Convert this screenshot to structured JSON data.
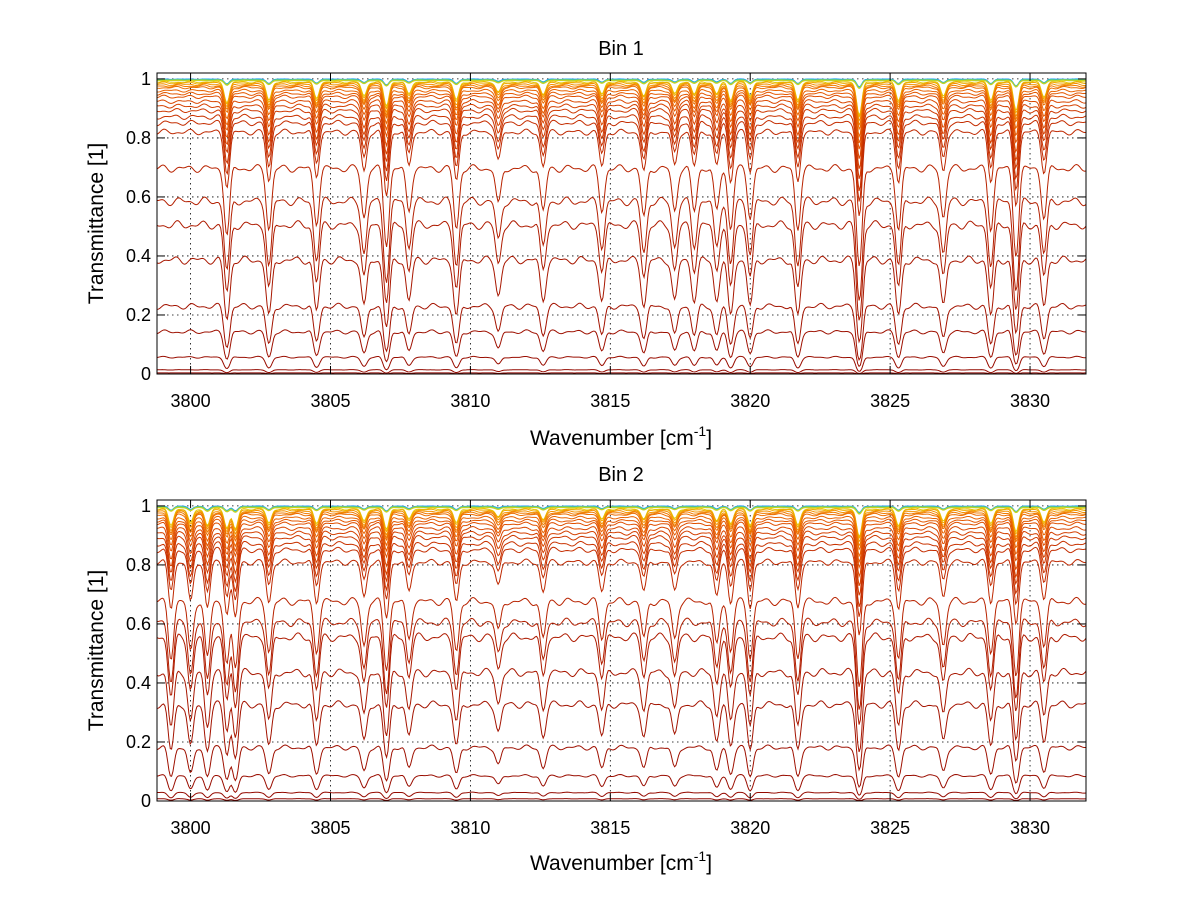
{
  "chart_data": [
    {
      "type": "line",
      "title": "Bin 1",
      "xlabel": "Wavenumber [cm",
      "xlabel_sup": "-1",
      "xlabel_end": "]",
      "ylabel": "Transmittance [1]",
      "xlim": [
        3798.8,
        3832
      ],
      "ylim": [
        0,
        1.02
      ],
      "xticks": [
        3800,
        3805,
        3810,
        3815,
        3820,
        3825,
        3830
      ],
      "yticks": [
        0,
        0.2,
        0.4,
        0.6,
        0.8,
        1
      ],
      "xticklabels": [
        "3800",
        "3805",
        "3810",
        "3815",
        "3820",
        "3825",
        "3830"
      ],
      "yticklabels": [
        "0",
        "0.2",
        "0.4",
        "0.6",
        "0.8",
        "1"
      ],
      "grid": true,
      "series_baselines": [
        1.0,
        0.999,
        0.998,
        0.997,
        0.995,
        0.993,
        0.99,
        0.985,
        0.98,
        0.975,
        0.965,
        0.955,
        0.945,
        0.93,
        0.915,
        0.9,
        0.88,
        0.86,
        0.83,
        0.71,
        0.6,
        0.52,
        0.4,
        0.24,
        0.15,
        0.06,
        0.015,
        0.004
      ],
      "series_colors": [
        "#1e90ff",
        "#23b5d8",
        "#3fc9a0",
        "#8cd05a",
        "#c9d21f",
        "#e6c500",
        "#f0a800",
        "#f39000",
        "#f07c00",
        "#ec6d00",
        "#e86200",
        "#e45800",
        "#df4f00",
        "#da4700",
        "#d44000",
        "#ce3900",
        "#c93300",
        "#c42d00",
        "#be2800",
        "#b82300",
        "#b31f00",
        "#ae1b00",
        "#a81700",
        "#a31300",
        "#9e1000",
        "#990d00",
        "#940a00",
        "#8f0700"
      ],
      "absorption_lines": [
        {
          "x": 3801.3,
          "depth": 0.5
        },
        {
          "x": 3802.8,
          "depth": 0.45
        },
        {
          "x": 3804.5,
          "depth": 0.4
        },
        {
          "x": 3806.2,
          "depth": 0.35
        },
        {
          "x": 3807.0,
          "depth": 0.6
        },
        {
          "x": 3807.8,
          "depth": 0.3
        },
        {
          "x": 3809.5,
          "depth": 0.45
        },
        {
          "x": 3811.0,
          "depth": 0.25
        },
        {
          "x": 3812.6,
          "depth": 0.3
        },
        {
          "x": 3814.7,
          "depth": 0.3
        },
        {
          "x": 3816.2,
          "depth": 0.35
        },
        {
          "x": 3817.3,
          "depth": 0.3
        },
        {
          "x": 3818.0,
          "depth": 0.3
        },
        {
          "x": 3818.8,
          "depth": 0.3
        },
        {
          "x": 3819.3,
          "depth": 0.45
        },
        {
          "x": 3820.0,
          "depth": 0.35
        },
        {
          "x": 3821.7,
          "depth": 0.45
        },
        {
          "x": 3823.9,
          "depth": 0.85
        },
        {
          "x": 3825.3,
          "depth": 0.45
        },
        {
          "x": 3826.9,
          "depth": 0.35
        },
        {
          "x": 3828.6,
          "depth": 0.45
        },
        {
          "x": 3829.5,
          "depth": 0.7
        },
        {
          "x": 3830.5,
          "depth": 0.35
        }
      ]
    },
    {
      "type": "line",
      "title": "Bin 2",
      "xlabel": "Wavenumber [cm",
      "xlabel_sup": "-1",
      "xlabel_end": "]",
      "ylabel": "Transmittance [1]",
      "xlim": [
        3798.8,
        3832
      ],
      "ylim": [
        0,
        1.02
      ],
      "xticks": [
        3800,
        3805,
        3810,
        3815,
        3820,
        3825,
        3830
      ],
      "yticks": [
        0,
        0.2,
        0.4,
        0.6,
        0.8,
        1
      ],
      "xticklabels": [
        "3800",
        "3805",
        "3810",
        "3815",
        "3820",
        "3825",
        "3830"
      ],
      "yticklabels": [
        "0",
        "0.2",
        "0.4",
        "0.6",
        "0.8",
        "1"
      ],
      "grid": true,
      "series_baselines": [
        1.0,
        0.999,
        0.998,
        0.997,
        0.995,
        0.993,
        0.99,
        0.985,
        0.98,
        0.975,
        0.965,
        0.955,
        0.945,
        0.93,
        0.915,
        0.9,
        0.88,
        0.86,
        0.82,
        0.69,
        0.62,
        0.57,
        0.45,
        0.34,
        0.19,
        0.09,
        0.03,
        0.008
      ],
      "series_colors": [
        "#1e90ff",
        "#23b5d8",
        "#3fc9a0",
        "#8cd05a",
        "#c9d21f",
        "#e6c500",
        "#f0a800",
        "#f39000",
        "#f07c00",
        "#ec6d00",
        "#e86200",
        "#e45800",
        "#df4f00",
        "#da4700",
        "#d44000",
        "#ce3900",
        "#c93300",
        "#c42d00",
        "#be2800",
        "#b82300",
        "#b31f00",
        "#ae1b00",
        "#a81700",
        "#a31300",
        "#9e1000",
        "#990d00",
        "#940a00",
        "#8f0700"
      ],
      "absorption_lines": [
        {
          "x": 3799.3,
          "depth": 0.4
        },
        {
          "x": 3800.0,
          "depth": 0.35
        },
        {
          "x": 3800.6,
          "depth": 0.4
        },
        {
          "x": 3801.3,
          "depth": 0.45
        },
        {
          "x": 3801.6,
          "depth": 0.5
        },
        {
          "x": 3802.8,
          "depth": 0.35
        },
        {
          "x": 3804.5,
          "depth": 0.35
        },
        {
          "x": 3806.2,
          "depth": 0.3
        },
        {
          "x": 3807.0,
          "depth": 0.5
        },
        {
          "x": 3807.8,
          "depth": 0.25
        },
        {
          "x": 3809.5,
          "depth": 0.35
        },
        {
          "x": 3811.0,
          "depth": 0.2
        },
        {
          "x": 3812.6,
          "depth": 0.25
        },
        {
          "x": 3814.7,
          "depth": 0.25
        },
        {
          "x": 3816.2,
          "depth": 0.25
        },
        {
          "x": 3817.3,
          "depth": 0.25
        },
        {
          "x": 3818.8,
          "depth": 0.3
        },
        {
          "x": 3819.3,
          "depth": 0.35
        },
        {
          "x": 3820.0,
          "depth": 0.4
        },
        {
          "x": 3821.7,
          "depth": 0.4
        },
        {
          "x": 3823.9,
          "depth": 0.7
        },
        {
          "x": 3825.3,
          "depth": 0.4
        },
        {
          "x": 3826.9,
          "depth": 0.3
        },
        {
          "x": 3828.6,
          "depth": 0.35
        },
        {
          "x": 3829.5,
          "depth": 0.55
        },
        {
          "x": 3830.5,
          "depth": 0.3
        }
      ]
    }
  ]
}
